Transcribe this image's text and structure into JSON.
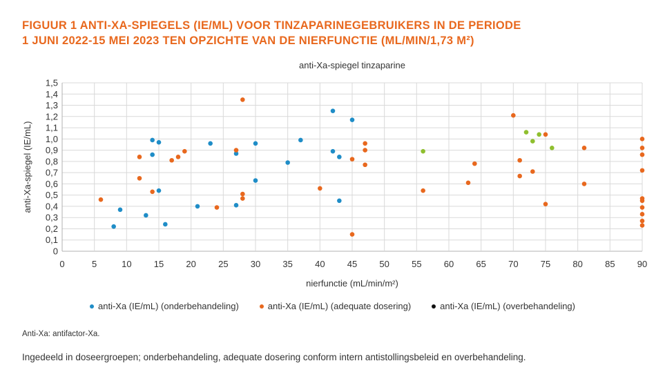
{
  "title_lines": [
    "FIGUUR 1  ANTI-XA-SPIEGELS (IE/ML) VOOR TINZAPARINEGEBRUIKERS IN DE PERIODE",
    "1 JUNI 2022-15 MEI 2023 TEN OPZICHTE VAN DE NIERFUNCTIE (ML/MIN/1,73 M²)"
  ],
  "colors": {
    "title": "#e8681e",
    "grid": "#d9d9d9",
    "axis": "#b0b0b0",
    "extra_points": "#8fbf2f"
  },
  "chart_data": {
    "type": "scatter",
    "title": "anti-Xa-spiegel tinzaparine",
    "xlabel": "nierfunctie (mL/min/m²)",
    "ylabel": "anti-Xa-spiegel (IE/mL)",
    "xlim": [
      0,
      90
    ],
    "ylim": [
      0,
      1.5
    ],
    "x_ticks": [
      "0",
      "5",
      "10",
      "15",
      "20",
      "25",
      "30",
      "35",
      "40",
      "45",
      "50",
      "55",
      "60",
      "65",
      "70",
      "75",
      "80",
      "85",
      "90"
    ],
    "y_ticks": [
      "0",
      "0,1",
      "0,2",
      "0,3",
      "0,4",
      "0,5",
      "0,6",
      "0,7",
      "0,8",
      "0,9",
      "1,0",
      "1,1",
      "1,2",
      "1,3",
      "1,4",
      "1,5"
    ],
    "grid": true,
    "legend_position": "bottom",
    "series": [
      {
        "name": "anti-Xa (IE/mL) (onderbehandeling)",
        "color": "#1f8dc7",
        "points": [
          [
            8,
            0.22
          ],
          [
            9,
            0.37
          ],
          [
            13,
            0.32
          ],
          [
            14,
            0.99
          ],
          [
            14,
            0.86
          ],
          [
            15,
            0.97
          ],
          [
            15,
            0.54
          ],
          [
            16,
            0.24
          ],
          [
            21,
            0.4
          ],
          [
            23,
            0.96
          ],
          [
            27,
            0.41
          ],
          [
            27,
            0.87
          ],
          [
            30,
            0.96
          ],
          [
            30,
            0.63
          ],
          [
            35,
            0.79
          ],
          [
            37,
            0.99
          ],
          [
            42,
            1.25
          ],
          [
            42,
            0.89
          ],
          [
            43,
            0.84
          ],
          [
            43,
            0.45
          ],
          [
            45,
            1.17
          ]
        ]
      },
      {
        "name": "anti-Xa (IE/mL) (adequate dosering)",
        "color": "#e8681e",
        "points": [
          [
            6,
            0.46
          ],
          [
            12,
            0.84
          ],
          [
            12,
            0.65
          ],
          [
            14,
            0.53
          ],
          [
            17,
            0.81
          ],
          [
            18,
            0.84
          ],
          [
            19,
            0.89
          ],
          [
            24,
            0.39
          ],
          [
            27,
            0.9
          ],
          [
            28,
            1.35
          ],
          [
            28,
            0.51
          ],
          [
            28,
            0.47
          ],
          [
            40,
            0.56
          ],
          [
            45,
            0.82
          ],
          [
            45,
            0.15
          ],
          [
            47,
            0.96
          ],
          [
            47,
            0.9
          ],
          [
            47,
            0.77
          ],
          [
            56,
            0.54
          ],
          [
            63,
            0.61
          ],
          [
            64,
            0.78
          ],
          [
            70,
            1.21
          ],
          [
            71,
            0.81
          ],
          [
            71,
            0.67
          ],
          [
            73,
            0.71
          ],
          [
            75,
            1.04
          ],
          [
            75,
            0.42
          ],
          [
            81,
            0.92
          ],
          [
            81,
            0.6
          ],
          [
            90,
            1.0
          ],
          [
            90,
            0.92
          ],
          [
            90,
            0.86
          ],
          [
            90,
            0.72
          ],
          [
            90,
            0.47
          ],
          [
            90,
            0.45
          ],
          [
            90,
            0.39
          ],
          [
            90,
            0.33
          ],
          [
            90,
            0.27
          ],
          [
            90,
            0.23
          ]
        ]
      },
      {
        "name": "anti-Xa (IE/mL) (overbehandeling)",
        "color": "#111111",
        "points": []
      }
    ],
    "extra_points": [
      [
        56,
        0.89
      ],
      [
        72,
        1.06
      ],
      [
        73,
        0.98
      ],
      [
        74,
        1.04
      ],
      [
        76,
        0.92
      ]
    ]
  },
  "footnote": "Anti-Xa: antifactor-Xa.",
  "caption": "Ingedeeld in doseergroepen; onderbehandeling, adequate dosering conform intern antistollingsbeleid en overbehandeling."
}
